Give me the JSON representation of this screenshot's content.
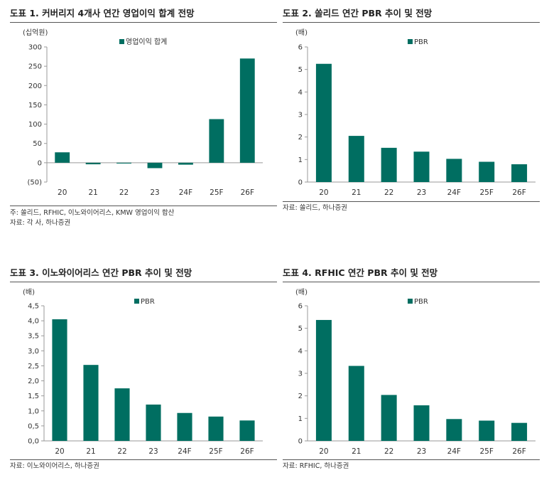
{
  "colors": {
    "bar": "#006e61",
    "axis": "#999999",
    "text": "#333333"
  },
  "chart_data": [
    {
      "type": "bar",
      "title": "도표 1. 커버리지 4개사 연간 영업이익 합계 전망",
      "unit_label": "(십억원)",
      "categories": [
        "20",
        "21",
        "22",
        "23",
        "24F",
        "25F",
        "26F"
      ],
      "series": [
        {
          "name": "영업이익 합계",
          "values": [
            27,
            -4,
            -2,
            -14,
            -5,
            113,
            270
          ]
        }
      ],
      "ylim": [
        -50,
        300
      ],
      "yticks": [
        -50,
        0,
        50,
        100,
        150,
        200,
        250,
        300
      ],
      "ytick_labels": [
        "(50)",
        "0",
        "50",
        "100",
        "150",
        "200",
        "250",
        "300"
      ],
      "legend": "top-center",
      "sources": [
        "주: 쏠리드, RFHIC, 이노와이어리스, KMW 영업이익 합산",
        "자료: 각 사, 하나증권"
      ]
    },
    {
      "type": "bar",
      "title": "도표 2. 쏠리드 연간 PBR 추이 및 전망",
      "unit_label": "(배)",
      "categories": [
        "20",
        "21",
        "22",
        "23",
        "24F",
        "25F",
        "26F"
      ],
      "series": [
        {
          "name": "PBR",
          "values": [
            5.25,
            2.05,
            1.52,
            1.35,
            1.03,
            0.9,
            0.79
          ]
        }
      ],
      "ylim": [
        0,
        6
      ],
      "yticks": [
        0,
        1,
        2,
        3,
        4,
        5,
        6
      ],
      "ytick_labels": [
        "0",
        "1",
        "2",
        "3",
        "4",
        "5",
        "6"
      ],
      "legend": "top-center",
      "sources": [
        "자료: 쏠리드, 하나증권"
      ]
    },
    {
      "type": "bar",
      "title": "도표 3. 이노와이어리스 연간 PBR 추이 및 전망",
      "unit_label": "(배)",
      "categories": [
        "20",
        "21",
        "22",
        "23",
        "24F",
        "25F",
        "26F"
      ],
      "series": [
        {
          "name": "PBR",
          "values": [
            4.05,
            2.53,
            1.75,
            1.21,
            0.93,
            0.81,
            0.68
          ]
        }
      ],
      "ylim": [
        0,
        4.5
      ],
      "yticks": [
        0,
        0.5,
        1.0,
        1.5,
        2.0,
        2.5,
        3.0,
        3.5,
        4.0,
        4.5
      ],
      "ytick_labels": [
        "0,0",
        "0,5",
        "1,0",
        "1,5",
        "2,0",
        "2,5",
        "3,0",
        "3,5",
        "4,0",
        "4,5"
      ],
      "legend": "top-center",
      "sources": [
        "자료: 이노와이어리스, 하나증권"
      ]
    },
    {
      "type": "bar",
      "title": "도표 4. RFHIC 연간 PBR 추이 및 전망",
      "unit_label": "(배)",
      "categories": [
        "20",
        "21",
        "22",
        "23",
        "24F",
        "25F",
        "26F"
      ],
      "series": [
        {
          "name": "PBR",
          "values": [
            5.37,
            3.33,
            2.04,
            1.58,
            0.97,
            0.9,
            0.8
          ]
        }
      ],
      "ylim": [
        0,
        6
      ],
      "yticks": [
        0,
        1,
        2,
        3,
        4,
        5,
        6
      ],
      "ytick_labels": [
        "0",
        "1",
        "2",
        "3",
        "4",
        "5",
        "6"
      ],
      "legend": "top-center",
      "sources": [
        "자료: RFHIC, 하나증권"
      ]
    }
  ]
}
